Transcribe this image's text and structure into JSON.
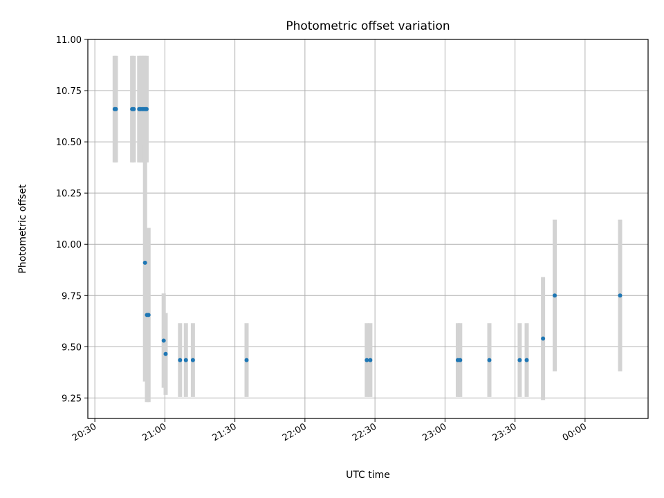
{
  "chart_data": {
    "type": "scatter",
    "title": "Photometric offset variation",
    "xlabel": "UTC time",
    "ylabel": "Photometric offset",
    "xlim": [
      "20:27",
      "00:27"
    ],
    "ylim": [
      9.15,
      11.0
    ],
    "x_ticks": [
      "20:30",
      "21:00",
      "21:30",
      "22:00",
      "22:30",
      "23:00",
      "23:30",
      "00:00"
    ],
    "y_ticks": [
      "9.25",
      "9.50",
      "9.75",
      "10.00",
      "10.25",
      "10.50",
      "10.75",
      "11.00"
    ],
    "grid": true,
    "colors": {
      "marker": "#1f77b4",
      "errorbar": "#d3d3d3",
      "grid": "#b0b0b0"
    },
    "points": [
      {
        "x": "20:38:30",
        "y": 10.66,
        "err": 0.26
      },
      {
        "x": "20:39:00",
        "y": 10.66,
        "err": 0.26
      },
      {
        "x": "20:46:00",
        "y": 10.66,
        "err": 0.26
      },
      {
        "x": "20:46:40",
        "y": 10.66,
        "err": 0.26
      },
      {
        "x": "20:49:00",
        "y": 10.66,
        "err": 0.26
      },
      {
        "x": "20:49:40",
        "y": 10.66,
        "err": 0.26
      },
      {
        "x": "20:50:20",
        "y": 10.66,
        "err": 0.26
      },
      {
        "x": "20:51:00",
        "y": 10.66,
        "err": 0.26
      },
      {
        "x": "20:51:40",
        "y": 10.66,
        "err": 0.26
      },
      {
        "x": "20:52:10",
        "y": 10.66,
        "err": 0.26
      },
      {
        "x": "20:51:30",
        "y": 9.91,
        "err": 0.58
      },
      {
        "x": "20:52:20",
        "y": 9.655,
        "err": 0.425
      },
      {
        "x": "20:53:00",
        "y": 9.655,
        "err": 0.425
      },
      {
        "x": "20:59:30",
        "y": 9.53,
        "err": 0.23
      },
      {
        "x": "21:00:20",
        "y": 9.465,
        "err": 0.2
      },
      {
        "x": "21:06:30",
        "y": 9.435,
        "err": 0.18
      },
      {
        "x": "21:09:00",
        "y": 9.435,
        "err": 0.18
      },
      {
        "x": "21:12:00",
        "y": 9.435,
        "err": 0.18
      },
      {
        "x": "21:35:00",
        "y": 9.435,
        "err": 0.18
      },
      {
        "x": "22:26:30",
        "y": 9.435,
        "err": 0.18
      },
      {
        "x": "22:28:00",
        "y": 9.435,
        "err": 0.18
      },
      {
        "x": "23:05:30",
        "y": 9.435,
        "err": 0.18
      },
      {
        "x": "23:06:30",
        "y": 9.435,
        "err": 0.18
      },
      {
        "x": "23:19:00",
        "y": 9.435,
        "err": 0.18
      },
      {
        "x": "23:32:00",
        "y": 9.435,
        "err": 0.18
      },
      {
        "x": "23:35:00",
        "y": 9.435,
        "err": 0.18
      },
      {
        "x": "23:42:00",
        "y": 9.54,
        "err": 0.3
      },
      {
        "x": "23:47:00",
        "y": 9.75,
        "err": 0.37
      },
      {
        "x": "00:15:00",
        "y": 9.75,
        "err": 0.37
      }
    ]
  }
}
